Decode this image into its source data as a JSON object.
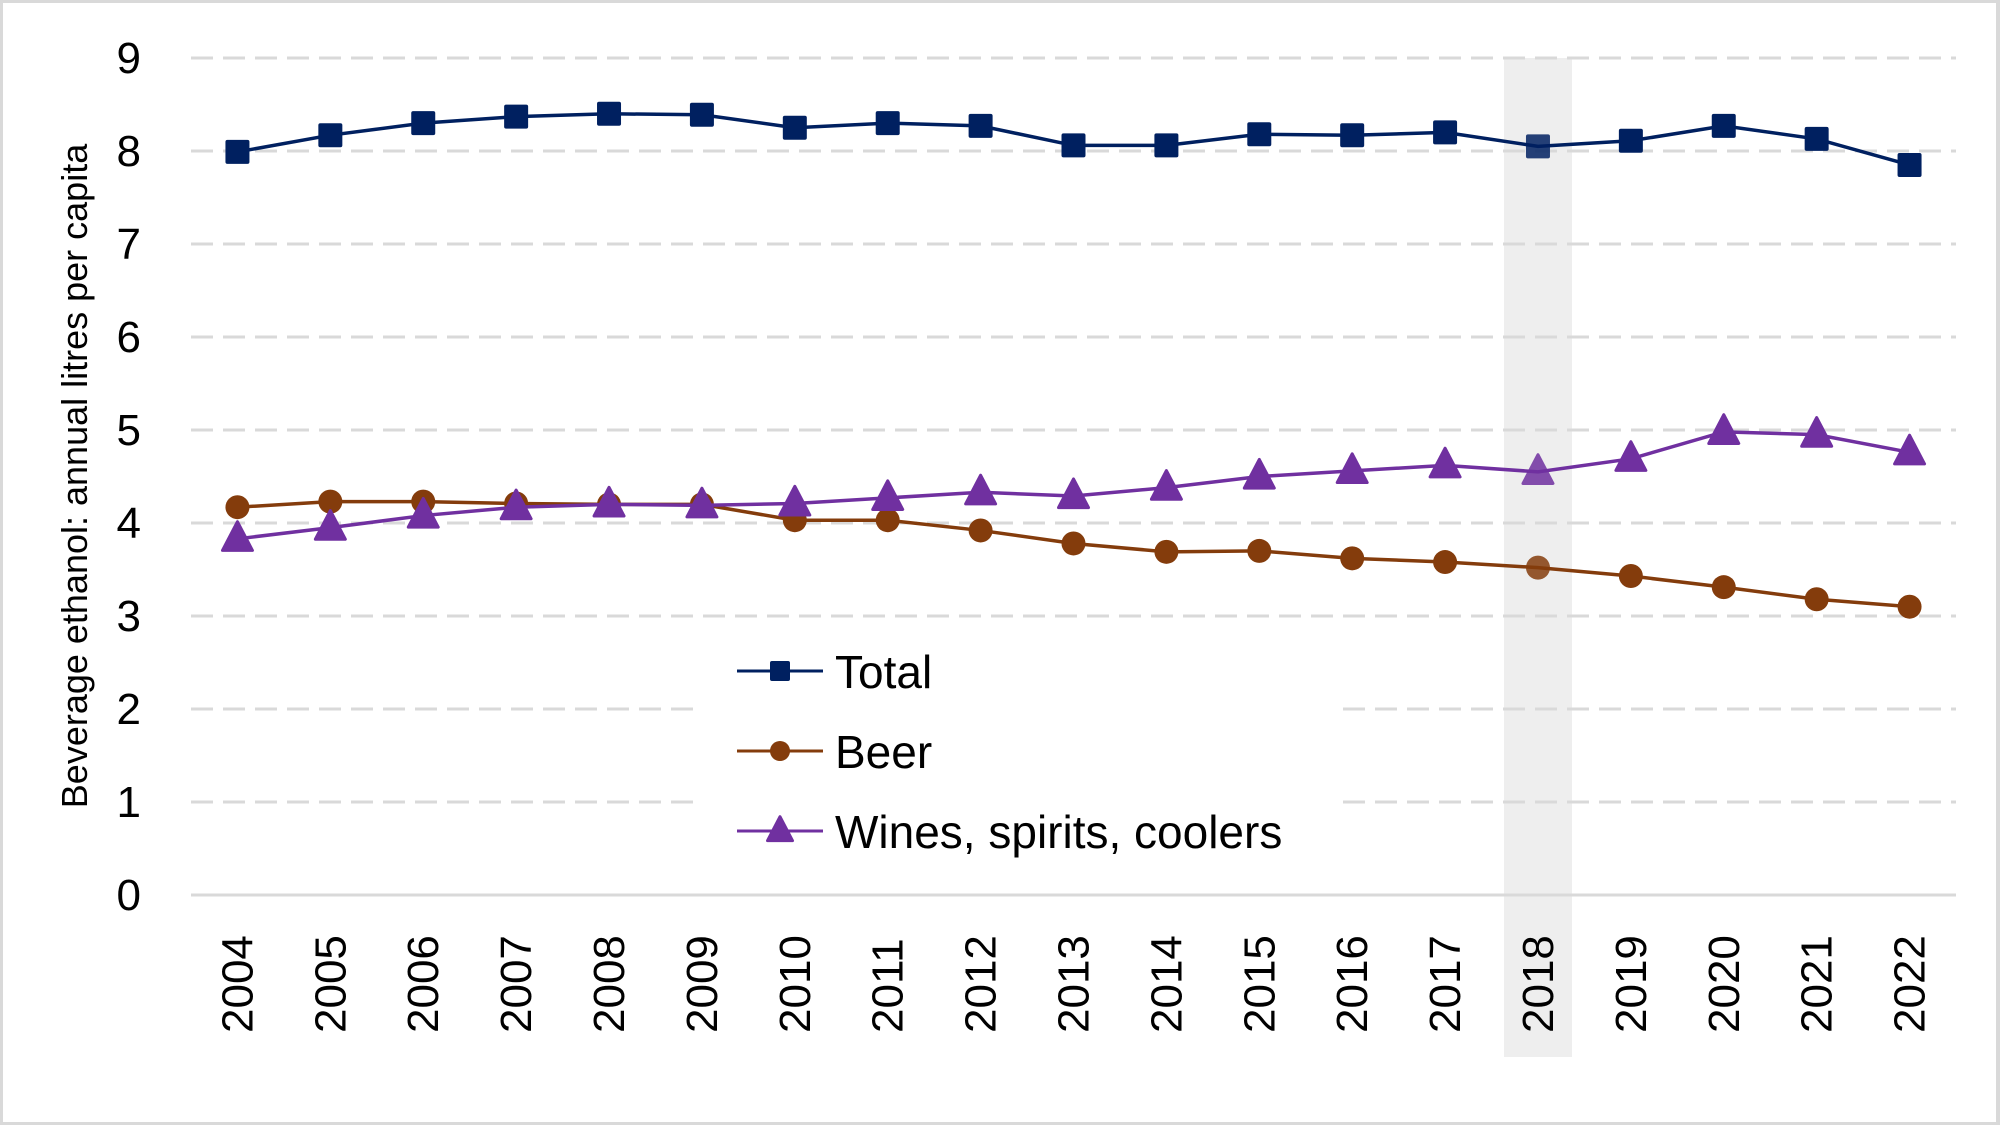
{
  "chart_data": {
    "type": "line",
    "title": "",
    "xlabel": "",
    "ylabel": "Beverage ethanol: annual litres per capita",
    "ylim": [
      0,
      9
    ],
    "yticks": [
      "0",
      "1",
      "2",
      "3",
      "4",
      "5",
      "6",
      "7",
      "8",
      "9"
    ],
    "grid": "horizontal dashed",
    "legend_position": "center-left, lower part of plot",
    "highlighted_category": "2018",
    "categories": [
      "2004",
      "2005",
      "2006",
      "2007",
      "2008",
      "2009",
      "2010",
      "2011",
      "2012",
      "2013",
      "2014",
      "2015",
      "2016",
      "2017",
      "2018",
      "2019",
      "2020",
      "2021",
      "2022"
    ],
    "series": [
      {
        "name": "Total",
        "marker": "square",
        "color": "#002060",
        "values": [
          7.99,
          8.17,
          8.3,
          8.37,
          8.4,
          8.39,
          8.25,
          8.3,
          8.27,
          8.06,
          8.06,
          8.18,
          8.17,
          8.2,
          8.05,
          8.11,
          8.27,
          8.13,
          7.85
        ]
      },
      {
        "name": "Beer",
        "marker": "circle",
        "color": "#843C0C",
        "values": [
          4.17,
          4.23,
          4.23,
          4.21,
          4.2,
          4.2,
          4.03,
          4.03,
          3.92,
          3.78,
          3.69,
          3.7,
          3.62,
          3.58,
          3.52,
          3.43,
          3.31,
          3.18,
          3.1
        ]
      },
      {
        "name": "Wines, spirits, coolers",
        "marker": "triangle",
        "color": "#7030A0",
        "values": [
          3.83,
          3.95,
          4.08,
          4.17,
          4.2,
          4.19,
          4.21,
          4.27,
          4.33,
          4.29,
          4.38,
          4.5,
          4.56,
          4.62,
          4.55,
          4.69,
          4.98,
          4.95,
          4.76
        ]
      }
    ],
    "colors": {
      "grid": "#d9d9d9",
      "highlight_band": "#eeeeee",
      "frame": "#d9d9d9"
    }
  }
}
